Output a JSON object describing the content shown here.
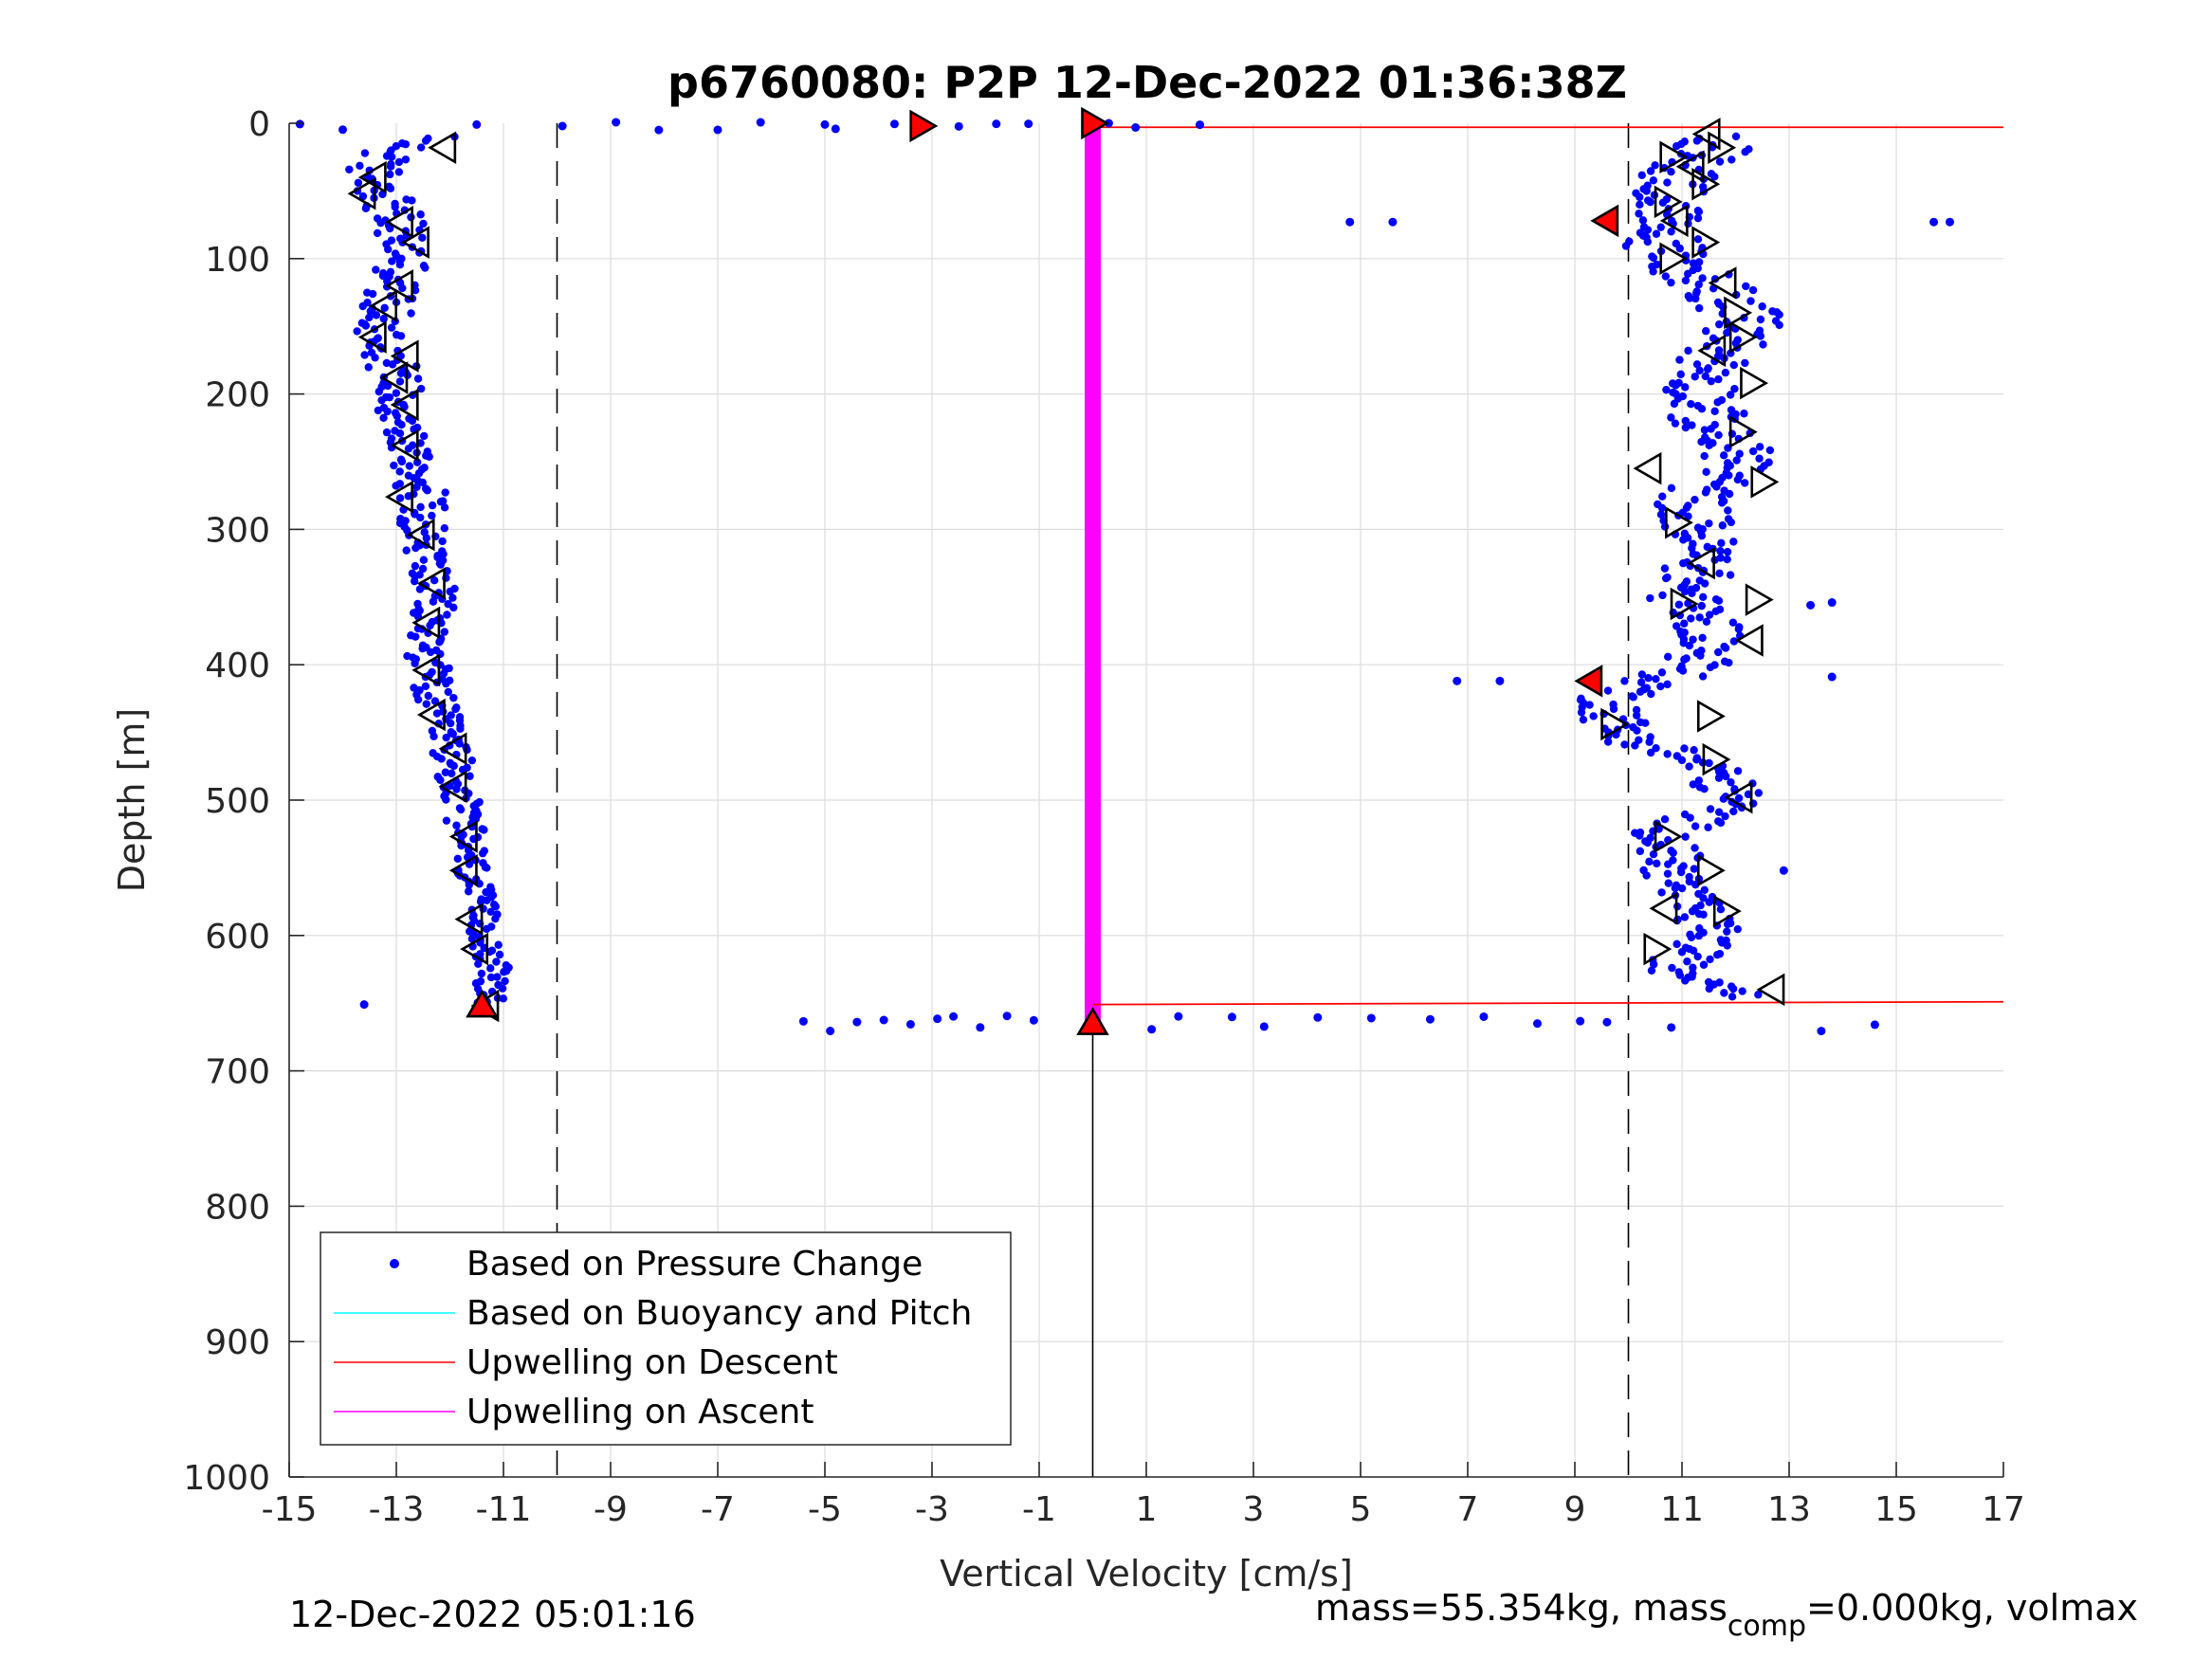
{
  "chart_data": {
    "type": "scatter",
    "title": "p6760080: P2P 12-Dec-2022 01:36:38Z",
    "xlabel": "Vertical Velocity [cm/s]",
    "ylabel": "Depth [m]",
    "xlim": [
      -15,
      17
    ],
    "ylim": [
      0,
      1000
    ],
    "y_reversed": true,
    "grid": true,
    "xticks": [
      -15,
      -13,
      -11,
      -9,
      -7,
      -5,
      -3,
      -1,
      1,
      3,
      5,
      7,
      9,
      11,
      13,
      15,
      17
    ],
    "xtick_labels": [
      "-15",
      "-13",
      "-11",
      "-9",
      "-7",
      "-5",
      "-3",
      "-1",
      "1",
      "3",
      "5",
      "7",
      "9",
      "11",
      "13",
      "15",
      "17"
    ],
    "yticks": [
      0,
      100,
      200,
      300,
      400,
      500,
      600,
      700,
      800,
      900,
      1000
    ],
    "ytick_labels": [
      "0",
      "100",
      "200",
      "300",
      "400",
      "500",
      "600",
      "700",
      "800",
      "900",
      "1000"
    ],
    "legend": {
      "location": "bottom-left",
      "entries": [
        {
          "label": "Based on Pressure Change",
          "color": "#0000ff",
          "style": "dot"
        },
        {
          "label": "Based on Buoyancy and Pitch",
          "color": "#00ffff",
          "style": "line"
        },
        {
          "label": "Upwelling on Descent",
          "color": "#ff0000",
          "style": "line"
        },
        {
          "label": "Upwelling on Ascent",
          "color": "#ff00ff",
          "style": "line"
        }
      ]
    },
    "reference_lines": {
      "dashed_x": [
        -10,
        10
      ],
      "zero_line": {
        "x": 0,
        "depth_range": [
          668,
          1000
        ]
      }
    },
    "upwelling_ascent": {
      "x": 0,
      "depth_range": [
        0,
        668
      ],
      "color": "#ff00ff"
    },
    "upwelling_descent": [
      {
        "x": [
          0,
          17
        ],
        "depth": [
          3,
          3
        ]
      },
      {
        "x": [
          0,
          17
        ],
        "depth": [
          651,
          649
        ]
      }
    ],
    "series": [
      {
        "name": "Based on Pressure Change",
        "color": "#0000ff",
        "descent_profile": [
          [
            -12.4,
            10
          ],
          [
            -13.5,
            30
          ],
          [
            -13.2,
            50
          ],
          [
            -13.0,
            75
          ],
          [
            -12.8,
            100
          ],
          [
            -13.1,
            125
          ],
          [
            -13.3,
            150
          ],
          [
            -13.1,
            175
          ],
          [
            -12.9,
            200
          ],
          [
            -12.9,
            225
          ],
          [
            -12.7,
            250
          ],
          [
            -12.5,
            275
          ],
          [
            -12.5,
            300
          ],
          [
            -12.4,
            325
          ],
          [
            -12.3,
            350
          ],
          [
            -12.4,
            375
          ],
          [
            -12.4,
            400
          ],
          [
            -12.3,
            425
          ],
          [
            -12.1,
            450
          ],
          [
            -11.9,
            475
          ],
          [
            -11.8,
            500
          ],
          [
            -11.7,
            525
          ],
          [
            -11.6,
            550
          ],
          [
            -11.5,
            575
          ],
          [
            -11.3,
            600
          ],
          [
            -11.2,
            625
          ],
          [
            -11.3,
            650
          ]
        ],
        "ascent_profile": [
          [
            11.7,
            10
          ],
          [
            11.0,
            40
          ],
          [
            10.5,
            75
          ],
          [
            10.8,
            100
          ],
          [
            11.8,
            125
          ],
          [
            12.2,
            150
          ],
          [
            11.6,
            175
          ],
          [
            11.4,
            200
          ],
          [
            11.5,
            225
          ],
          [
            12.2,
            250
          ],
          [
            11.2,
            275
          ],
          [
            11.3,
            300
          ],
          [
            11.4,
            325
          ],
          [
            11.0,
            350
          ],
          [
            11.6,
            375
          ],
          [
            11.3,
            400
          ],
          [
            9.7,
            425
          ],
          [
            9.8,
            450
          ],
          [
            11.5,
            475
          ],
          [
            12.0,
            500
          ],
          [
            10.7,
            525
          ],
          [
            10.8,
            550
          ],
          [
            11.1,
            575
          ],
          [
            11.6,
            600
          ],
          [
            10.8,
            625
          ],
          [
            12.5,
            645
          ]
        ],
        "surface_row": {
          "depth": 2,
          "x": [
            -14.8,
            -14.0,
            -11.5,
            -9.9,
            -8.9,
            -8.1,
            -7.0,
            -6.2,
            -5.0,
            -4.8,
            -3.7,
            -3.2,
            -2.5,
            -1.8,
            -1.2,
            0.3,
            0.8,
            2.0
          ]
        },
        "bottom_row": {
          "depth": 665,
          "x": [
            -5.4,
            -4.9,
            -4.4,
            -3.9,
            -3.4,
            -2.9,
            -2.6,
            -2.1,
            -1.6,
            -1.1,
            0.0,
            1.1,
            1.6,
            2.6,
            3.2,
            4.2,
            5.2,
            6.3,
            7.3,
            8.3,
            9.1,
            9.6,
            10.8,
            13.6,
            14.6
          ]
        },
        "outliers": [
          [
            4.8,
            73
          ],
          [
            5.6,
            73
          ],
          [
            15.7,
            73
          ],
          [
            16.0,
            73
          ],
          [
            6.8,
            412
          ],
          [
            7.6,
            412
          ],
          [
            13.8,
            409
          ],
          [
            13.4,
            356
          ],
          [
            13.8,
            354
          ],
          [
            -13.6,
            651
          ],
          [
            12.9,
            552
          ]
        ]
      }
    ],
    "markers": {
      "descent_triangles": [
        [
          -12.1,
          18
        ],
        [
          -13.4,
          40
        ],
        [
          -13.6,
          52
        ],
        [
          -12.9,
          73
        ],
        [
          -12.6,
          88
        ],
        [
          -12.9,
          120
        ],
        [
          -13.2,
          135
        ],
        [
          -13.4,
          158
        ],
        [
          -12.8,
          172
        ],
        [
          -13.0,
          188
        ],
        [
          -12.8,
          208
        ],
        [
          -12.8,
          238
        ],
        [
          -12.9,
          276
        ],
        [
          -12.5,
          304
        ],
        [
          -12.3,
          340
        ],
        [
          -12.4,
          369
        ],
        [
          -12.4,
          404
        ],
        [
          -12.3,
          437
        ],
        [
          -11.9,
          462
        ],
        [
          -11.9,
          490
        ],
        [
          -11.7,
          527
        ],
        [
          -11.7,
          552
        ],
        [
          -11.6,
          588
        ],
        [
          -11.5,
          610
        ],
        [
          -11.3,
          652
        ]
      ],
      "ascent_triangles": [
        [
          11.5,
          8
        ],
        [
          11.7,
          18
        ],
        [
          10.8,
          25
        ],
        [
          11.2,
          32
        ],
        [
          11.4,
          45
        ],
        [
          10.7,
          58
        ],
        [
          10.9,
          72
        ],
        [
          11.4,
          88
        ],
        [
          10.8,
          100
        ],
        [
          11.8,
          118
        ],
        [
          12.0,
          140
        ],
        [
          12.1,
          158
        ],
        [
          11.6,
          168
        ],
        [
          12.3,
          192
        ],
        [
          12.1,
          228
        ],
        [
          10.4,
          255
        ],
        [
          12.5,
          265
        ],
        [
          10.9,
          295
        ],
        [
          11.4,
          325
        ],
        [
          11.0,
          355
        ],
        [
          12.4,
          352
        ],
        [
          12.3,
          382
        ],
        [
          11.5,
          438
        ],
        [
          11.6,
          470
        ],
        [
          12.1,
          498
        ],
        [
          10.7,
          527
        ],
        [
          11.5,
          552
        ],
        [
          10.7,
          580
        ],
        [
          11.8,
          582
        ],
        [
          10.5,
          610
        ],
        [
          12.7,
          640
        ],
        [
          9.7,
          444
        ]
      ],
      "red_triangles": [
        [
          -3.2,
          2,
          "right"
        ],
        [
          0.0,
          0,
          "right"
        ],
        [
          9.6,
          72,
          "left"
        ],
        [
          9.3,
          412,
          "left"
        ],
        [
          -11.4,
          652,
          "up"
        ],
        [
          0.0,
          665,
          "up"
        ]
      ]
    }
  },
  "footer": {
    "timestamp": "12-Dec-2022 05:01:16",
    "mass_prefix": "mass=55.354kg, mass",
    "mass_sub": "comp",
    "mass_suffix": "=0.000kg, volmax"
  }
}
